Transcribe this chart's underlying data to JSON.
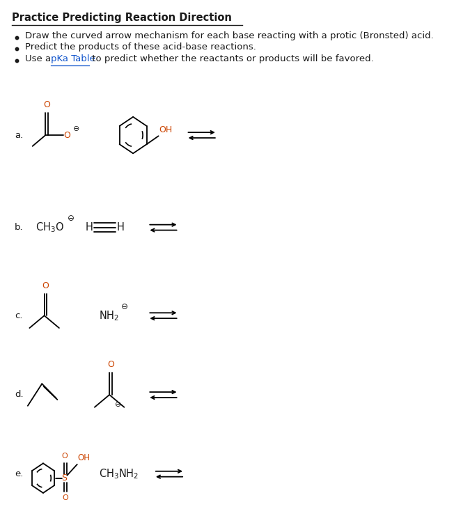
{
  "title": "Practice Predicting Reaction Direction",
  "bullet1": "Draw the curved arrow mechanism for each base reacting with a protic (Bronsted) acid.",
  "bullet2": "Predict the products of these acid-base reactions.",
  "bullet3_pre": "Use a ",
  "bullet3_link": "pKa Table",
  "bullet3_post": " to predict whether the reactants or products will be favored.",
  "background": "#ffffff",
  "text_color": "#1a1a1a",
  "link_color": "#1155cc",
  "orange_color": "#cc4400",
  "label_a": "a.",
  "label_b": "b.",
  "label_c": "c.",
  "label_d": "d.",
  "label_e": "e.",
  "ch3o_text": "CH$_3$O",
  "nh2_text": "NH$_2$",
  "ch3nh2_text": "CH$_3$NH$_2$"
}
